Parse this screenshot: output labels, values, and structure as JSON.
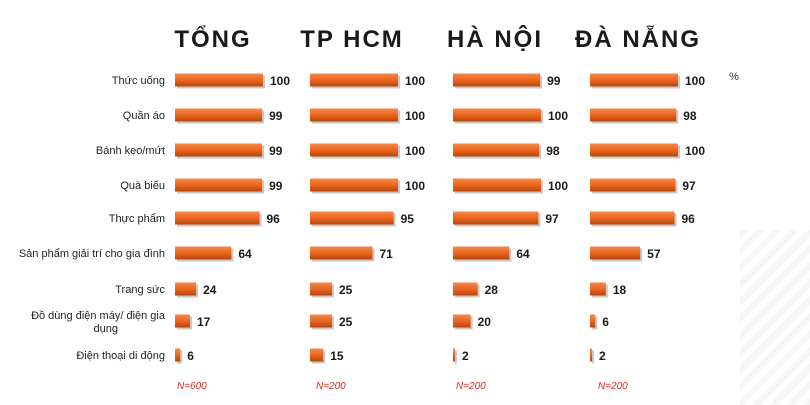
{
  "chart_data": {
    "type": "bar",
    "orientation": "horizontal",
    "unit": "%",
    "bar_color": "#e8621a",
    "categories": [
      "Thức uống",
      "Quần áo",
      "Bánh kẹo/mứt",
      "Quà biếu",
      "Thực phẩm",
      "Sản phẩm giải trí cho gia đình",
      "Trang sức",
      "Đồ dùng điện máy/ điện gia dụng",
      "Điện thoại di động"
    ],
    "series": [
      {
        "name": "TỔNG",
        "values": [
          100,
          99,
          99,
          99,
          96,
          64,
          24,
          17,
          6
        ],
        "note": "N=600"
      },
      {
        "name": "TP HCM",
        "values": [
          100,
          100,
          100,
          100,
          95,
          71,
          25,
          25,
          15
        ],
        "note": "N=200"
      },
      {
        "name": "HÀ NỘI",
        "values": [
          99,
          100,
          98,
          100,
          97,
          64,
          28,
          20,
          2
        ],
        "note": "N=200"
      },
      {
        "name": "ĐÀ NẴNG",
        "values": [
          100,
          98,
          100,
          97,
          96,
          57,
          18,
          6,
          2
        ],
        "note": "N=200"
      }
    ],
    "xlim": [
      0,
      100
    ]
  }
}
